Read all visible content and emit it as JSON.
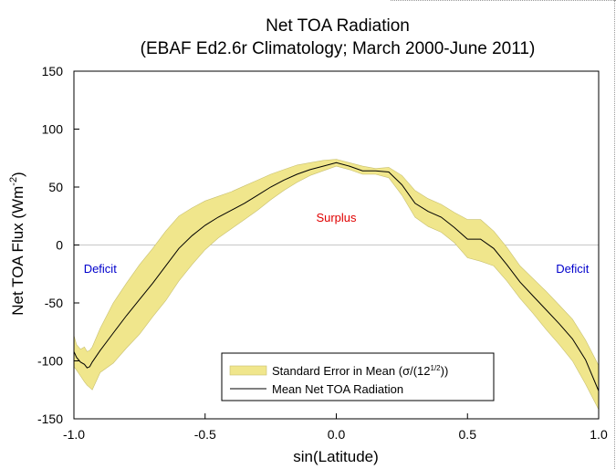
{
  "chart_data": {
    "type": "area",
    "title": "Net TOA Radiation",
    "subtitle": "(EBAF Ed2.6r Climatology; March 2000-June 2011)",
    "xlabel": "sin(Latitude)",
    "ylabel": "Net TOA Flux (Wm",
    "ylabel_sup": "-2",
    "ylabel_tail": ")",
    "xlim": [
      -1.0,
      1.0
    ],
    "ylim": [
      -150,
      150
    ],
    "xticks": [
      -1.0,
      -0.5,
      0.0,
      0.5,
      1.0
    ],
    "xtick_labels": [
      "-1.0",
      "-0.5",
      "0.0",
      "0.5",
      "1.0"
    ],
    "yticks": [
      -150,
      -100,
      -50,
      0,
      50,
      100,
      150
    ],
    "ytick_labels": [
      "-150",
      "-100",
      "-50",
      "0",
      "50",
      "100",
      "150"
    ],
    "zero_line": true,
    "grid": false,
    "legend_position": "bottom-center",
    "colors": {
      "band": "#f0e68c",
      "band_edge": "#c8c070",
      "line": "#000000",
      "zero_line": "#c8c8c8",
      "annot_deficit": "#0000cc",
      "annot_surplus": "#e00000"
    },
    "series": [
      {
        "name": "Mean Net TOA Radiation",
        "kind": "line",
        "x": [
          -1.0,
          -0.99,
          -0.975,
          -0.96,
          -0.95,
          -0.94,
          -0.93,
          -0.9,
          -0.85,
          -0.8,
          -0.75,
          -0.7,
          -0.65,
          -0.6,
          -0.55,
          -0.5,
          -0.45,
          -0.4,
          -0.35,
          -0.3,
          -0.25,
          -0.2,
          -0.15,
          -0.1,
          -0.05,
          0.0,
          0.05,
          0.1,
          0.15,
          0.2,
          0.25,
          0.3,
          0.35,
          0.4,
          0.45,
          0.5,
          0.55,
          0.6,
          0.65,
          0.7,
          0.75,
          0.8,
          0.85,
          0.9,
          0.95,
          1.0
        ],
        "y": [
          -92,
          -97,
          -101,
          -103,
          -106,
          -105,
          -101,
          -91,
          -76,
          -61,
          -47,
          -33,
          -18,
          -3,
          8,
          17,
          24,
          30,
          36,
          43,
          50,
          56,
          61,
          65,
          68,
          71,
          68,
          64,
          64,
          63,
          52,
          36,
          29,
          24,
          15,
          5,
          5,
          -3,
          -17,
          -32,
          -44,
          -56,
          -68,
          -81,
          -99,
          -126
        ]
      },
      {
        "name": "Standard Error in Mean (σ/(12",
        "legend_sup": "1/2",
        "legend_tail": "))",
        "kind": "band",
        "x": [
          -1.0,
          -0.99,
          -0.975,
          -0.96,
          -0.95,
          -0.94,
          -0.93,
          -0.9,
          -0.85,
          -0.8,
          -0.75,
          -0.7,
          -0.65,
          -0.6,
          -0.55,
          -0.5,
          -0.45,
          -0.4,
          -0.35,
          -0.3,
          -0.25,
          -0.2,
          -0.15,
          -0.1,
          -0.05,
          0.0,
          0.05,
          0.1,
          0.15,
          0.2,
          0.25,
          0.3,
          0.35,
          0.4,
          0.45,
          0.5,
          0.55,
          0.6,
          0.65,
          0.7,
          0.75,
          0.8,
          0.85,
          0.9,
          0.95,
          1.0
        ],
        "upper": [
          -78,
          -86,
          -90,
          -88,
          -92,
          -91,
          -88,
          -72,
          -50,
          -33,
          -17,
          -3,
          12,
          25,
          32,
          38,
          42,
          46,
          51,
          56,
          61,
          65,
          69,
          71,
          73,
          74,
          71,
          68,
          66,
          67,
          60,
          47,
          40,
          35,
          28,
          22,
          22,
          12,
          -2,
          -18,
          -29,
          -40,
          -52,
          -64,
          -82,
          -104
        ],
        "lower": [
          -105,
          -108,
          -113,
          -118,
          -121,
          -123,
          -125,
          -110,
          -102,
          -89,
          -77,
          -62,
          -48,
          -31,
          -17,
          -4,
          6,
          14,
          22,
          30,
          39,
          47,
          54,
          60,
          64,
          68,
          65,
          61,
          61,
          58,
          43,
          24,
          16,
          11,
          2,
          -11,
          -14,
          -18,
          -31,
          -46,
          -59,
          -73,
          -86,
          -100,
          -120,
          -142
        ]
      }
    ],
    "annotations": [
      {
        "text": "Deficit",
        "x": -0.9,
        "y": -24,
        "color": "annot_deficit"
      },
      {
        "text": "Surplus",
        "x": 0.0,
        "y": 20,
        "color": "annot_surplus"
      },
      {
        "text": "Deficit",
        "x": 0.9,
        "y": -24,
        "color": "annot_deficit"
      }
    ]
  }
}
